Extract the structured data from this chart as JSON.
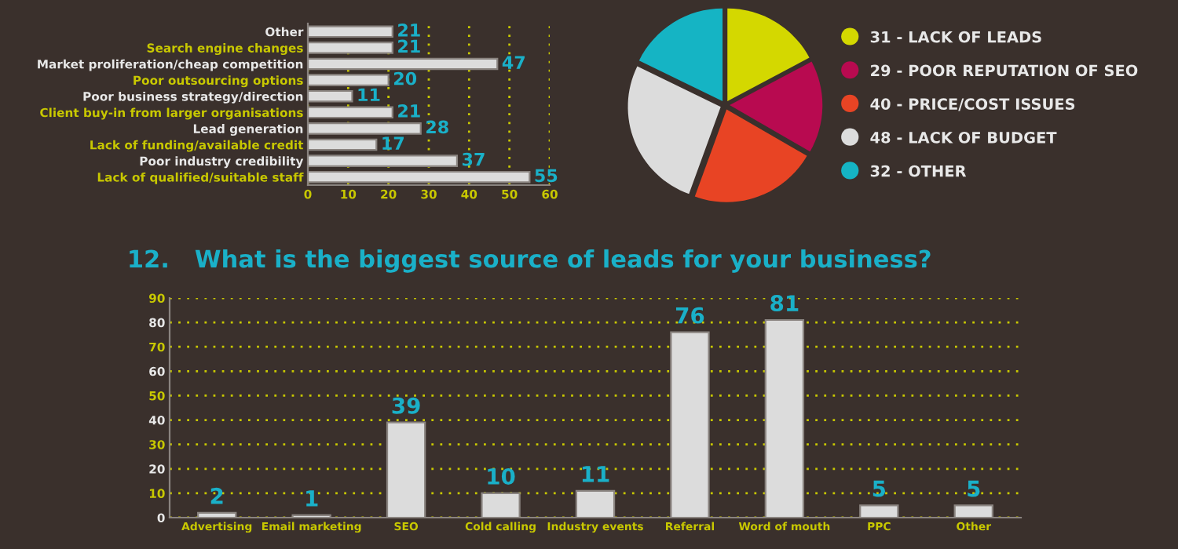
{
  "chart_data": [
    {
      "type": "bar",
      "orientation": "horizontal",
      "categories": [
        "Other",
        "Search engine changes",
        "Market proliferation/cheap competition",
        "Poor outsourcing options",
        "Poor business strategy/direction",
        "Client buy-in from larger organisations",
        "Lead generation",
        "Lack of funding/available credit",
        "Poor industry credibility",
        "Lack of qualified/suitable staff"
      ],
      "values": [
        21,
        21,
        47,
        20,
        11,
        21,
        28,
        17,
        37,
        55
      ],
      "color": "#dcdcdc",
      "xlim": [
        0,
        60
      ],
      "xticks": [
        0,
        10,
        20,
        30,
        40,
        50,
        60
      ],
      "grid": "x",
      "data_labels": true
    },
    {
      "type": "pie",
      "categories": [
        "31 - LACK OF LEADS",
        "29 - POOR REPUTATION OF SEO",
        "40 - PRICE/COST ISSUES",
        "48 - LACK OF BUDGET",
        "32 - OTHER"
      ],
      "values": [
        31,
        29,
        40,
        48,
        32
      ],
      "colors": [
        "#d4d800",
        "#b80a50",
        "#e84424",
        "#dcdcdc",
        "#15b4c4"
      ],
      "legend": "right"
    },
    {
      "type": "bar",
      "title": "12.   What is the biggest source of leads for your business?",
      "categories": [
        "Advertising",
        "Email marketing",
        "SEO",
        "Cold calling",
        "Industry events",
        "Referral",
        "Word of mouth",
        "PPC",
        "Other"
      ],
      "values": [
        2,
        1,
        39,
        10,
        11,
        76,
        81,
        5,
        5
      ],
      "color": "#dcdcdc",
      "ylim": [
        0,
        90
      ],
      "yticks": [
        0,
        10,
        20,
        30,
        40,
        50,
        60,
        70,
        80,
        90
      ],
      "grid": "y",
      "data_labels": true
    }
  ]
}
